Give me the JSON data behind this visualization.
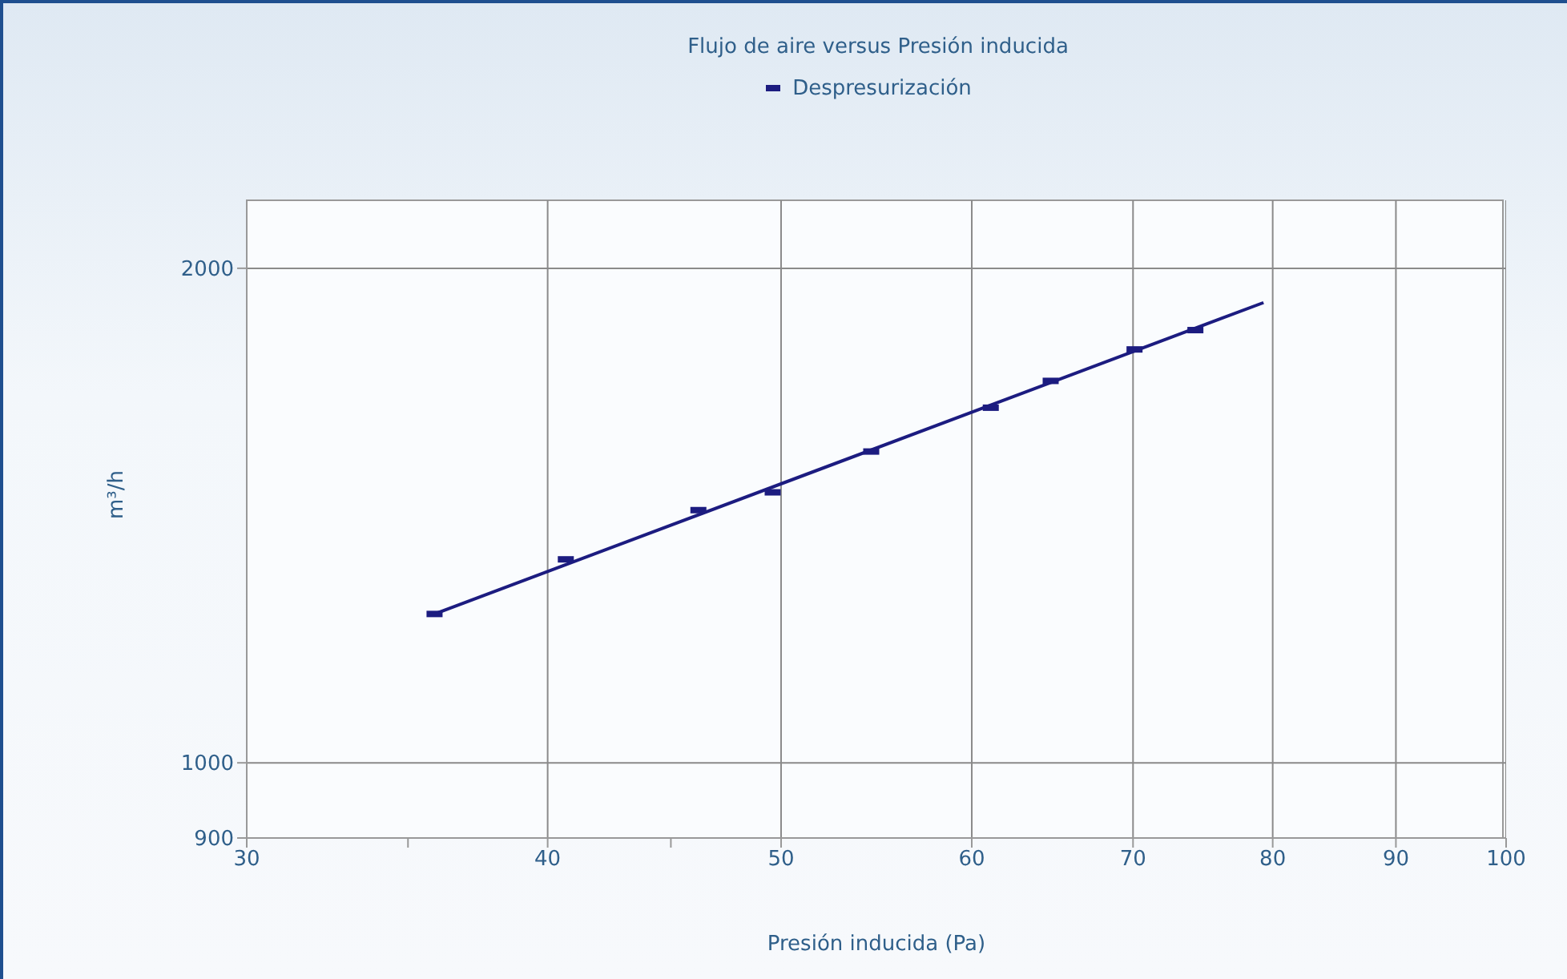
{
  "chart_data": {
    "type": "scatter",
    "title": "Flujo de aire versus Presión inducida",
    "xlabel": "Presión inducida (Pa)",
    "ylabel": "m³/h",
    "log": "xy",
    "xlim": [
      30,
      100
    ],
    "xticks": [
      30,
      {
        "value": 35,
        "label": null
      },
      40,
      {
        "value": 45,
        "label": null
      },
      50,
      60,
      70,
      80,
      90,
      100
    ],
    "ylim": [
      900,
      2200
    ],
    "yticks": [
      900,
      1000,
      2000
    ],
    "grid": true,
    "legend": "top",
    "marker": "square",
    "series": [
      {
        "name": "Despresurización",
        "color": "#1c1c80",
        "x": [
          35.9,
          40.7,
          46.2,
          49.6,
          54.5,
          61.1,
          64.7,
          70.1,
          74.3
        ],
        "values": [
          1232,
          1330,
          1425,
          1461,
          1547,
          1645,
          1708,
          1785,
          1834
        ]
      },
      {
        "type": "line",
        "color": "#1c1c80",
        "x": [
          35.9,
          79.3
        ],
        "values": [
          1232,
          1906
        ],
        "marker": "none"
      }
    ]
  }
}
